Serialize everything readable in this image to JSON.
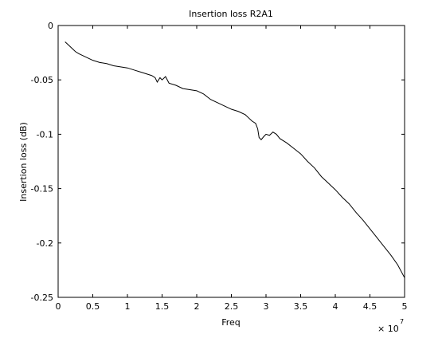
{
  "chart_data": {
    "type": "line",
    "title": "Insertion loss R2A1",
    "xlabel": "Freq",
    "ylabel": "Insertion loss (dB)",
    "x_multiplier_label": {
      "base": "× 10",
      "exponent": "7"
    },
    "xlim": [
      0,
      50000000.0
    ],
    "ylim": [
      -0.25,
      0
    ],
    "x_ticks": [
      0,
      5000000,
      10000000,
      15000000,
      20000000,
      25000000,
      30000000,
      35000000,
      40000000,
      45000000,
      50000000
    ],
    "x_tick_labels": [
      "0",
      "0.5",
      "1",
      "1.5",
      "2",
      "2.5",
      "3",
      "3.5",
      "4",
      "4.5",
      "5"
    ],
    "y_ticks": [
      0,
      -0.05,
      -0.1,
      -0.15,
      -0.2,
      -0.25
    ],
    "y_tick_labels": [
      "0",
      "-0.05",
      "-0.1",
      "-0.15",
      "-0.2",
      "-0.25"
    ],
    "grid": false,
    "legend": "none",
    "line_color": "#000000",
    "series": [
      {
        "x": [
          1000000,
          1500000,
          2000000,
          2500000,
          3000000,
          4000000,
          5000000,
          6000000,
          7000000,
          8000000,
          9000000,
          10000000,
          11000000,
          12000000,
          13000000,
          13500000,
          14000000,
          14300000,
          14700000,
          15000000,
          15500000,
          16000000,
          17000000,
          18000000,
          19000000,
          20000000,
          21000000,
          22000000,
          23000000,
          24000000,
          25000000,
          26000000,
          27000000,
          27500000,
          28000000,
          28500000,
          28800000,
          29000000,
          29300000,
          29700000,
          30000000,
          30500000,
          31000000,
          31500000,
          32000000,
          33000000,
          34000000,
          35000000,
          36000000,
          37000000,
          38000000,
          39000000,
          40000000,
          41000000,
          42000000,
          43000000,
          44000000,
          45000000,
          46000000,
          47000000,
          48000000,
          49000000,
          50000000
        ],
        "y": [
          -0.015,
          -0.018,
          -0.021,
          -0.024,
          -0.026,
          -0.029,
          -0.032,
          -0.034,
          -0.035,
          -0.037,
          -0.038,
          -0.039,
          -0.041,
          -0.043,
          -0.045,
          -0.046,
          -0.048,
          -0.052,
          -0.048,
          -0.05,
          -0.047,
          -0.053,
          -0.055,
          -0.058,
          -0.059,
          -0.06,
          -0.063,
          -0.068,
          -0.071,
          -0.074,
          -0.077,
          -0.079,
          -0.082,
          -0.085,
          -0.088,
          -0.09,
          -0.095,
          -0.103,
          -0.105,
          -0.102,
          -0.1,
          -0.101,
          -0.098,
          -0.1,
          -0.104,
          -0.108,
          -0.113,
          -0.118,
          -0.125,
          -0.131,
          -0.139,
          -0.145,
          -0.151,
          -0.158,
          -0.164,
          -0.172,
          -0.179,
          -0.187,
          -0.195,
          -0.203,
          -0.211,
          -0.22,
          -0.232
        ]
      }
    ]
  }
}
